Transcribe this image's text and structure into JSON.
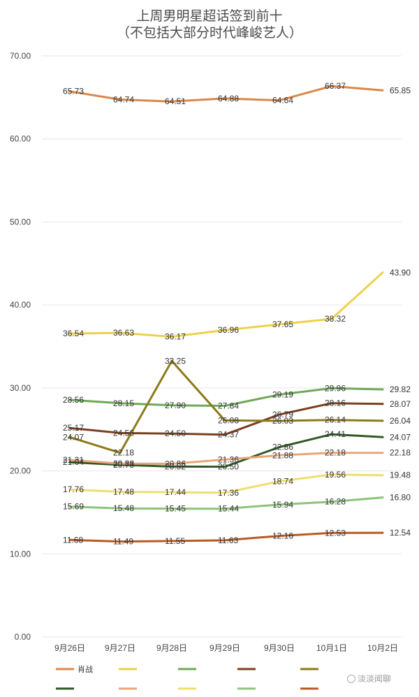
{
  "chart_data": {
    "type": "line",
    "title": [
      "上周男明星超话签到前十",
      "（不包括大部分时代峰峻艺人）"
    ],
    "categories": [
      "9月26日",
      "9月27日",
      "9月28日",
      "9月29日",
      "9月30日",
      "10月1日",
      "10月2日"
    ],
    "ylim": [
      0,
      70
    ],
    "yticks": [
      "0.00",
      "10.00",
      "20.00",
      "30.00",
      "40.00",
      "50.00",
      "60.00",
      "70.00"
    ],
    "grid": true,
    "legend_position": "bottom",
    "series": [
      {
        "name": "肖战",
        "color": "#d9884a",
        "values": [
          65.73,
          64.74,
          64.51,
          64.88,
          64.64,
          66.37,
          65.85
        ],
        "labels": [
          "65.73",
          "64.74",
          "64.51",
          "64.88",
          "64.64",
          "66.37",
          "65.85"
        ]
      },
      {
        "name": "",
        "color": "#ecd24a",
        "values": [
          36.54,
          36.63,
          36.17,
          36.96,
          37.65,
          38.32,
          43.9
        ],
        "labels": [
          "36.54",
          "36.63",
          "36.17",
          "36.96",
          "37.65",
          "38.32",
          "43.90"
        ]
      },
      {
        "name": "",
        "color": "#6fa85a",
        "values": [
          28.56,
          28.15,
          27.9,
          27.84,
          29.19,
          29.96,
          29.82
        ],
        "labels": [
          "28.56",
          "28.15",
          "27.90",
          "27.84",
          "29.19",
          "29.96",
          "29.82"
        ]
      },
      {
        "name": "",
        "color": "#7a3f1d",
        "values": [
          25.17,
          24.56,
          24.5,
          24.37,
          26.79,
          28.16,
          28.07
        ],
        "labels": [
          "25.17",
          "24.56",
          "24.50",
          "24.37",
          "26.79",
          "28.16",
          "28.07"
        ]
      },
      {
        "name": "",
        "color": "#8c7a17",
        "values": [
          24.07,
          22.18,
          33.25,
          26.08,
          26.03,
          26.14,
          26.04
        ],
        "labels": [
          "24.07",
          "22.18",
          "33.25",
          "26.08",
          "26.03",
          "26.14",
          "26.04"
        ]
      },
      {
        "name": "",
        "color": "#305a23",
        "values": [
          21.04,
          20.73,
          20.52,
          20.5,
          22.86,
          24.41,
          24.07
        ],
        "labels": [
          "21.04",
          "20.73",
          "20.52",
          "20.50",
          "22.86",
          "24.41",
          "24.07"
        ]
      },
      {
        "name": "",
        "color": "#e8a57a",
        "values": [
          21.31,
          20.88,
          20.86,
          21.36,
          21.88,
          22.18,
          22.18
        ],
        "labels": [
          "21.31",
          "20.88",
          "20.86",
          "21.36",
          "21.88",
          "22.18",
          "22.18"
        ]
      },
      {
        "name": "",
        "color": "#f0de6e",
        "values": [
          17.76,
          17.48,
          17.44,
          17.36,
          18.74,
          19.56,
          19.48
        ],
        "labels": [
          "17.76",
          "17.48",
          "17.44",
          "17.36",
          "18.74",
          "19.56",
          "19.48"
        ]
      },
      {
        "name": "",
        "color": "#8cc47a",
        "values": [
          15.69,
          15.48,
          15.45,
          15.44,
          15.94,
          16.28,
          16.8
        ],
        "labels": [
          "15.69",
          "15.48",
          "15.45",
          "15.44",
          "15.94",
          "16.28",
          "16.80"
        ]
      },
      {
        "name": "",
        "color": "#b85a22",
        "values": [
          11.68,
          11.49,
          11.55,
          11.63,
          12.16,
          12.53,
          12.54
        ],
        "labels": [
          "11.68",
          "11.49",
          "11.55",
          "11.63",
          "12.16",
          "12.53",
          "12.54"
        ]
      }
    ]
  },
  "watermark": "淡淡闻聊"
}
